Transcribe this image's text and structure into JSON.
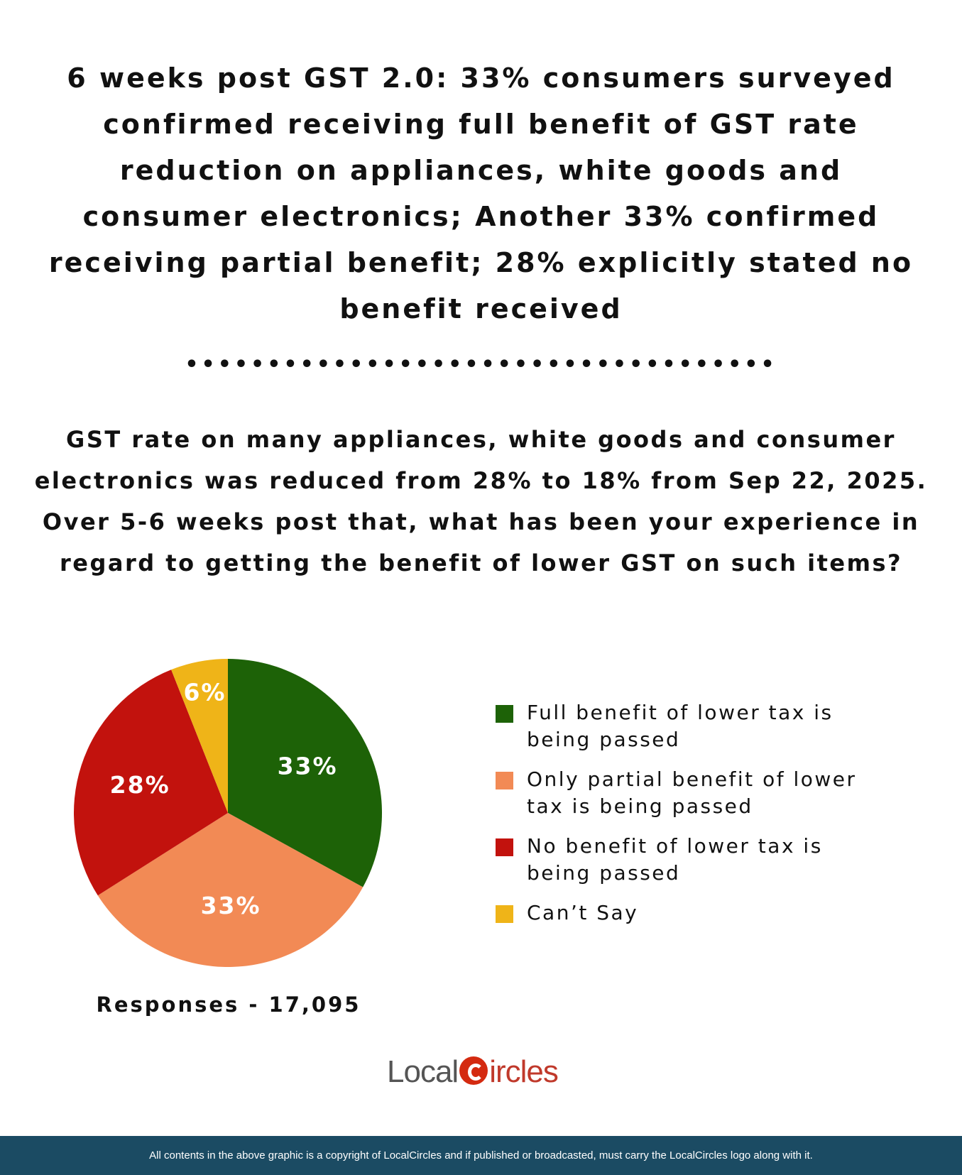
{
  "title": "6 weeks post GST 2.0: 33% consumers surveyed confirmed receiving full benefit of GST rate reduction on appliances, white goods and consumer electronics; Another 33% confirmed receiving partial benefit; 28% explicitly stated no benefit received",
  "divider": "••••••••••••••••••••••••••••••••••••",
  "question": "GST rate on many appliances, white goods and consumer electronics was reduced from 28% to 18% from Sep 22, 2025. Over 5-6 weeks post that, what has been your experience in regard to getting the benefit of lower GST on such items?",
  "chart_data": {
    "type": "pie",
    "title": "GST rate on many appliances, white goods and consumer electronics was reduced from 28% to 18% from Sep 22, 2025. Over 5-6 weeks post that, what has been your experience in regard to getting the benefit of lower GST on such items?",
    "categories": [
      "Full benefit of lower tax is being passed",
      "Only partial benefit of lower tax is being passed",
      "No benefit of lower tax is being passed",
      "Can’t Say"
    ],
    "values": [
      33,
      33,
      28,
      6
    ],
    "labels": [
      "33%",
      "33%",
      "28%",
      "6%"
    ],
    "colors": [
      "#1d6207",
      "#f28a55",
      "#c2120d",
      "#efb418"
    ],
    "legend_position": "right",
    "responses": "Responses - 17,095"
  },
  "logo": {
    "part1": "Local",
    "part2": "ircles"
  },
  "footer": "All contents in the above graphic is a copyright of LocalCircles and if published or broadcasted, must carry the LocalCircles logo along with it."
}
